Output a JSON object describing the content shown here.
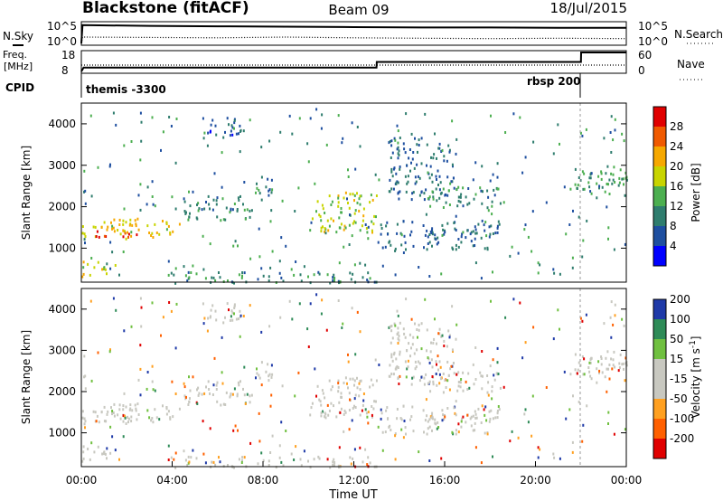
{
  "header": {
    "station": "Blackstone (fitACF)",
    "beam": "Beam 09",
    "date": "18/Jul/2015"
  },
  "summary": {
    "nsky_label": "N.Sky",
    "nsearch_label": "N.Search",
    "freq_label": "Freq.",
    "freq_unit": "[MHz]",
    "nave_label": "Nave",
    "cpid_label": "CPID",
    "nsky_ticks": [
      "10^5",
      "10^0"
    ],
    "nsearch_ticks": [
      "10^5",
      "10^0"
    ],
    "freq_ticks": [
      "18",
      "8"
    ],
    "nave_ticks": [
      "60",
      "0"
    ],
    "cpid_segments": [
      {
        "label": "themis -3300",
        "start_hour": 0.0,
        "end_hour": 22.0
      },
      {
        "label": "rbsp 200",
        "start_hour": 22.0,
        "end_hour": 24.0
      }
    ]
  },
  "colors": {
    "power_scale": [
      "#0000ff",
      "#1e4fa0",
      "#2f7d6e",
      "#4caf50",
      "#c8d400",
      "#f6a800",
      "#f05a00",
      "#e00000"
    ],
    "velocity_scale": [
      "#e00000",
      "#ff6000",
      "#ffa020",
      "#c8c8c0",
      "#c8c8c0",
      "#70c040",
      "#2e8b57",
      "#1f3aa8"
    ]
  },
  "chart_data": [
    {
      "type": "line",
      "name": "summary",
      "series": [
        {
          "name": "N.Sky",
          "x": [
            0,
            0.05,
            3,
            6,
            9,
            12,
            15,
            18,
            21,
            24
          ],
          "y_log10": [
            0,
            4.6,
            4.4,
            4.3,
            4.2,
            4.1,
            4.0,
            4.0,
            3.9,
            3.9
          ]
        },
        {
          "name": "N.Search",
          "x": [
            0,
            0.05,
            3,
            6,
            9,
            12,
            15,
            18,
            21,
            24
          ],
          "y_log10": [
            0,
            1.6,
            1.5,
            1.4,
            1.6,
            1.4,
            1.3,
            1.2,
            1.3,
            1.2
          ]
        },
        {
          "name": "Freq.",
          "x": [
            0,
            0.1,
            13.0,
            13.01,
            22.0,
            22.01,
            24
          ],
          "y": [
            8,
            10,
            10,
            13,
            13,
            18,
            18
          ]
        },
        {
          "name": "Nave",
          "x": [
            0,
            24
          ],
          "y": [
            20,
            20
          ]
        }
      ],
      "xlim": [
        0,
        24
      ]
    },
    {
      "type": "heatmap",
      "name": "power",
      "ylabel": "Slant Range [km]",
      "colorbar_label": "Power [dB]",
      "colorbar_ticks": [
        4,
        8,
        12,
        16,
        20,
        24,
        28
      ],
      "xlim": [
        0,
        24
      ],
      "ylim": [
        180,
        4500
      ],
      "yticks": [
        1000,
        2000,
        3000,
        4000
      ],
      "echo_bands": [
        {
          "start_hour": 0.0,
          "end_hour": 4.5,
          "range_low": 1250,
          "range_high": 1750,
          "power": 20
        },
        {
          "start_hour": 0.5,
          "end_hour": 2.5,
          "range_low": 1250,
          "range_high": 1450,
          "power": 27
        },
        {
          "start_hour": 0.0,
          "end_hour": 1.5,
          "range_low": 300,
          "range_high": 700,
          "power": 18
        },
        {
          "start_hour": 4.5,
          "end_hour": 7.5,
          "range_low": 1700,
          "range_high": 2300,
          "power": 11
        },
        {
          "start_hour": 7.5,
          "end_hour": 8.5,
          "range_low": 2300,
          "range_high": 2800,
          "power": 9
        },
        {
          "start_hour": 10.0,
          "end_hour": 13.0,
          "range_low": 1400,
          "range_high": 2400,
          "power": 17
        },
        {
          "start_hour": 13.0,
          "end_hour": 18.5,
          "range_low": 1000,
          "range_high": 1700,
          "power": 8
        },
        {
          "start_hour": 13.5,
          "end_hour": 16.5,
          "range_low": 2200,
          "range_high": 3700,
          "power": 8
        },
        {
          "start_hour": 15.0,
          "end_hour": 18.5,
          "range_low": 2000,
          "range_high": 2500,
          "power": 11
        },
        {
          "start_hour": 21.5,
          "end_hour": 24.0,
          "range_low": 2300,
          "range_high": 3000,
          "power": 12
        },
        {
          "start_hour": 3.5,
          "end_hour": 13.0,
          "range_low": 180,
          "range_high": 450,
          "power": 10
        },
        {
          "start_hour": 5.0,
          "end_hour": 7.0,
          "range_low": 3700,
          "range_high": 4200,
          "power": 6
        }
      ]
    },
    {
      "type": "heatmap",
      "name": "velocity",
      "xlabel": "Time UT",
      "ylabel": "Slant Range [km]",
      "colorbar_label": "Velocity [m s^-1]",
      "colorbar_ticks": [
        -200,
        -100,
        -50,
        -15,
        15,
        50,
        100,
        200
      ],
      "xlim": [
        0,
        24
      ],
      "ylim": [
        180,
        4500
      ],
      "yticks": [
        1000,
        2000,
        3000,
        4000
      ],
      "xticks": [
        "00:00",
        "04:00",
        "08:00",
        "12:00",
        "16:00",
        "20:00",
        "00:00"
      ]
    }
  ]
}
